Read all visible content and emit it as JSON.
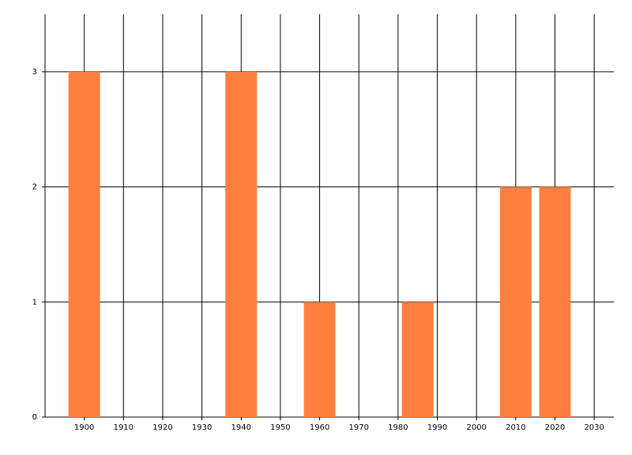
{
  "chart_data": {
    "type": "bar",
    "x": [
      1900,
      1940,
      1960,
      1985,
      2010,
      2020
    ],
    "values": [
      3,
      3,
      1,
      1,
      2,
      2
    ],
    "color": "#ff7f40",
    "xlim": [
      1890,
      2035
    ],
    "xticks": [
      1900,
      1910,
      1920,
      1930,
      1940,
      1950,
      1960,
      1970,
      1980,
      1990,
      2000,
      2010,
      2020,
      2030
    ],
    "ylim": [
      0,
      3.5
    ],
    "yticks": [
      0,
      1,
      2,
      3
    ],
    "grid": true
  }
}
